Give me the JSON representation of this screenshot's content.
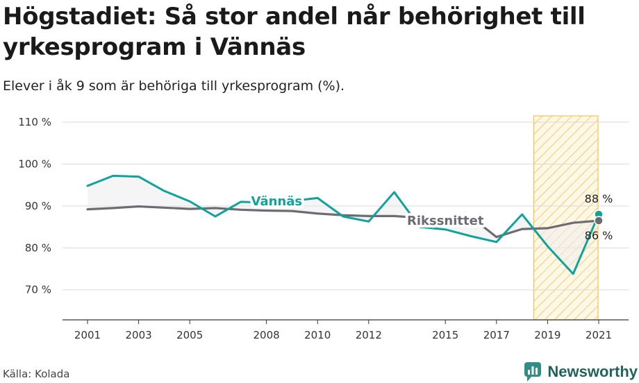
{
  "title": "Högstadiet: Så stor andel når behörighet till yrkesprogram i Vännäs",
  "subtitle": "Elever i åk 9 som är behöriga till yrkesprogram (%).",
  "source": "Källa: Kolada",
  "brand": "Newsworthy",
  "colors": {
    "vannas": "#0fa39a",
    "riks": "#6e6b72",
    "highlight": "#f2c14e",
    "grid": "#d9d9d9",
    "fill": "#ececee"
  },
  "chart_data": {
    "type": "line",
    "x": [
      2001,
      2002,
      2003,
      2004,
      2005,
      2006,
      2007,
      2008,
      2009,
      2010,
      2011,
      2012,
      2013,
      2014,
      2015,
      2016,
      2017,
      2018,
      2019,
      2020,
      2021
    ],
    "xticks": [
      2001,
      2003,
      2005,
      2008,
      2010,
      2012,
      2015,
      2017,
      2019,
      2021
    ],
    "ylim": [
      62.5,
      111.5
    ],
    "yticks": [
      70,
      80,
      90,
      100,
      110
    ],
    "ytick_labels": [
      "70 %",
      "80 %",
      "90 %",
      "100 %",
      "110 %"
    ],
    "highlight_range": [
      2019,
      2021
    ],
    "series": [
      {
        "name": "Vännäs",
        "label_year": 2007.4,
        "values": [
          94.8,
          97.2,
          97.0,
          93.6,
          91.1,
          87.5,
          91.0,
          90.8,
          91.2,
          91.9,
          87.5,
          86.3,
          93.3,
          85.0,
          84.4,
          82.8,
          81.4,
          88.0,
          80.4,
          73.8,
          88.0
        ]
      },
      {
        "name": "Rikssnittet",
        "label_year": 2013.5,
        "values": [
          89.2,
          89.5,
          89.9,
          89.6,
          89.3,
          89.5,
          89.1,
          88.9,
          88.8,
          88.2,
          87.8,
          87.6,
          87.6,
          87.2,
          86.8,
          87.4,
          82.6,
          84.5,
          84.7,
          86.0,
          86.5
        ]
      }
    ],
    "end_labels": [
      "88 %",
      "86 %"
    ]
  }
}
